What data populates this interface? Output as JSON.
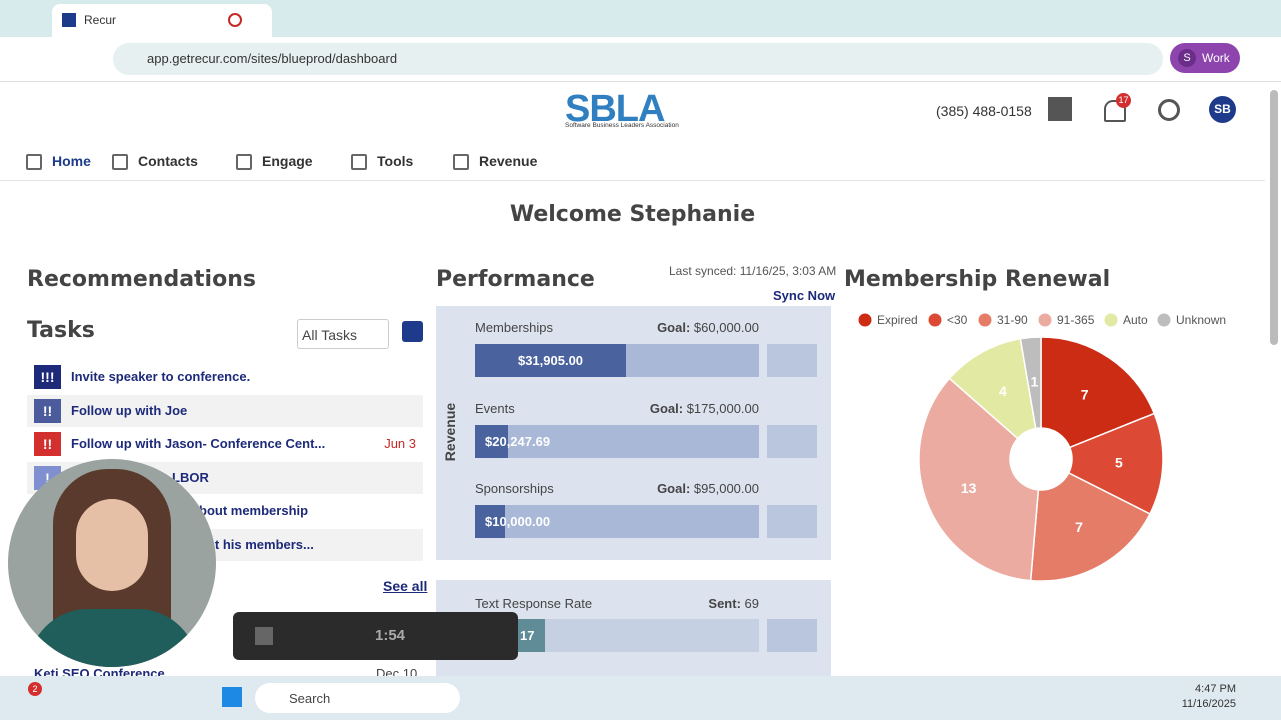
{
  "browser": {
    "tab_title": "Recur",
    "url": "app.getrecur.com/sites/blueprod/dashboard",
    "profile": "Work",
    "profile_initial": "S"
  },
  "header": {
    "logo": "SBLA",
    "logo_subtitle": "Software Business Leaders Association",
    "phone": "(385) 488-0158",
    "notifications": 17,
    "avatar": "SB",
    "nav": [
      "Home",
      "Contacts",
      "Engage",
      "Tools",
      "Revenue"
    ]
  },
  "welcome": "Welcome Stephanie",
  "recommendations": {
    "title": "Recommendations",
    "tasks_title": "Tasks",
    "filter": "All Tasks",
    "tasks": [
      {
        "priority": "!!!",
        "color": "#1d2a7a",
        "text": "Invite speaker to conference."
      },
      {
        "priority": "!!",
        "color": "#4b5b9c",
        "text": "Follow up with Joe"
      },
      {
        "priority": "!!",
        "color": "#d32f2f",
        "text": "Follow up with Jason- Conference Cent...",
        "due": "Jun 3"
      },
      {
        "priority": "!",
        "color": "#7f8fcf",
        "text": "LBOR"
      },
      {
        "text": "bout membership"
      },
      {
        "text": "out his members..."
      }
    ],
    "see_all": "See all",
    "event": {
      "name": "Keti SEO Conference",
      "date": "Dec 10"
    }
  },
  "performance": {
    "title": "Performance",
    "last_synced": "Last synced: 11/16/25, 3:03 AM",
    "sync": "Sync Now",
    "group_label": "Revenue",
    "goal_prefix": "Goal:",
    "items": [
      {
        "name": "Memberships",
        "value": 31905,
        "value_label": "$31,905.00",
        "goal": 60000,
        "goal_label": "$60,000.00"
      },
      {
        "name": "Events",
        "value": 20247.69,
        "value_label": "$20,247.69",
        "goal": 175000,
        "goal_label": "$175,000.00"
      },
      {
        "name": "Sponsorships",
        "value": 10000,
        "value_label": "$10,000.00",
        "goal": 95000,
        "goal_label": "$95,000.00"
      }
    ],
    "text_response": {
      "name": "Text Response Rate",
      "sent_label": "Sent:",
      "sent": 69,
      "value": 17
    }
  },
  "membership_renewal": {
    "type": "pie",
    "title": "Membership Renewal",
    "categories": [
      "Expired",
      "<30",
      "31-90",
      "91-365",
      "Auto",
      "Unknown"
    ],
    "values": [
      7,
      5,
      7,
      13,
      4,
      1
    ],
    "colors": [
      "#cc2b14",
      "#dc4a35",
      "#e47c68",
      "#ebaba1",
      "#e2e9a2",
      "#bdbdbd"
    ]
  },
  "recording": {
    "time": "1:54"
  },
  "taskbar": {
    "search": "Search",
    "time": "4:47 PM",
    "date": "11/16/2025",
    "badge": 2
  }
}
